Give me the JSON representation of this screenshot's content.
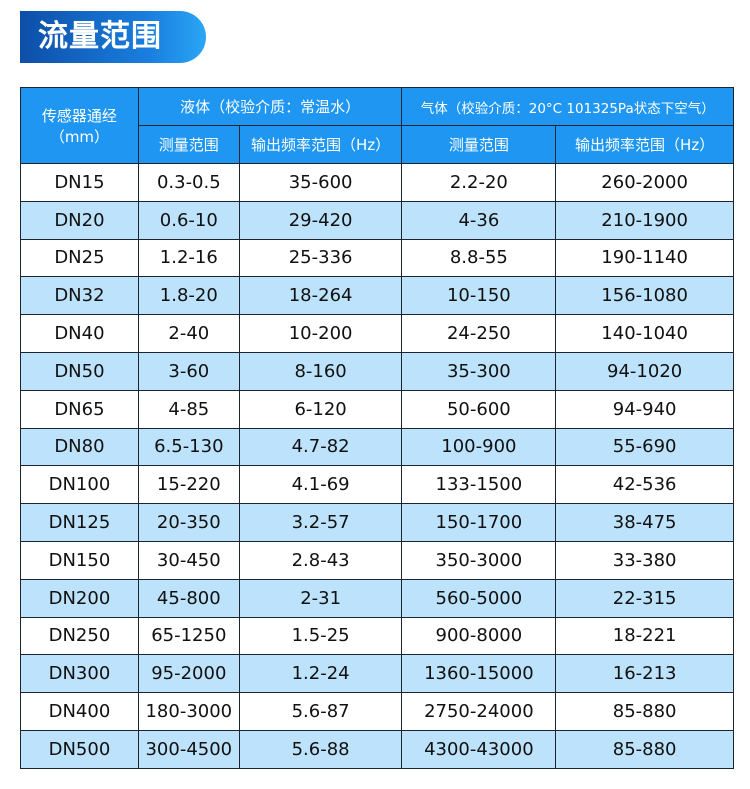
{
  "title": "流量范围",
  "header": {
    "diameter": "传感器通经",
    "diameter_unit": "（mm）",
    "liquid": "液体（校验介质：常温水）",
    "gas": "气体（校验介质：20°C 101325Pa状态下空气）",
    "liquid_range": "测量范围",
    "liquid_freq": "输出频率范围（Hz）",
    "gas_range": "测量范围",
    "gas_freq": "输出频率范围（Hz）"
  },
  "rows": [
    [
      "DN15",
      "0.3-0.5",
      "35-600",
      "2.2-20",
      "260-2000"
    ],
    [
      "DN20",
      "0.6-10",
      "29-420",
      "4-36",
      "210-1900"
    ],
    [
      "DN25",
      "1.2-16",
      "25-336",
      "8.8-55",
      "190-1140"
    ],
    [
      "DN32",
      "1.8-20",
      "18-264",
      "10-150",
      "156-1080"
    ],
    [
      "DN40",
      "2-40",
      "10-200",
      "24-250",
      "140-1040"
    ],
    [
      "DN50",
      "3-60",
      "8-160",
      "35-300",
      "94-1020"
    ],
    [
      "DN65",
      "4-85",
      "6-120",
      "50-600",
      "94-940"
    ],
    [
      "DN80",
      "6.5-130",
      "4.7-82",
      "100-900",
      "55-690"
    ],
    [
      "DN100",
      "15-220",
      "4.1-69",
      "133-1500",
      "42-536"
    ],
    [
      "DN125",
      "20-350",
      "3.2-57",
      "150-1700",
      "38-475"
    ],
    [
      "DN150",
      "30-450",
      "2.8-43",
      "350-3000",
      "33-380"
    ],
    [
      "DN200",
      "45-800",
      "2-31",
      "560-5000",
      "22-315"
    ],
    [
      "DN250",
      "65-1250",
      "1.5-25",
      "900-8000",
      "18-221"
    ],
    [
      "DN300",
      "95-2000",
      "1.2-24",
      "1360-15000",
      "16-213"
    ],
    [
      "DN400",
      "180-3000",
      "5.6-87",
      "2750-24000",
      "85-880"
    ],
    [
      "DN500",
      "300-4500",
      "5.6-88",
      "4300-43000",
      "85-880"
    ]
  ]
}
